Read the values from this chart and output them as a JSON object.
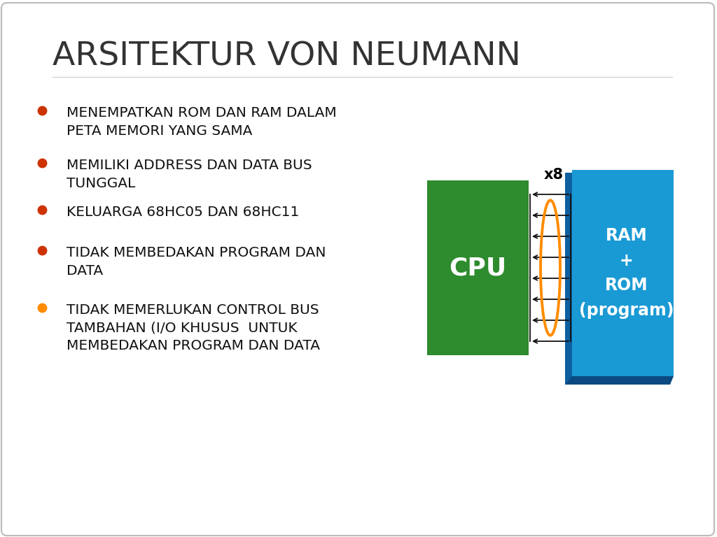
{
  "title": "ARSITEKTUR VON NEUMANN",
  "title_fontsize": 34,
  "title_color": "#333333",
  "bg_color": "#ffffff",
  "bullet_color": "#cc3300",
  "bullet_items": [
    "MENEMPATKAN ROM DAN RAM DALAM\nPETA MEMORI YANG SAMA",
    "MEMILIKI ADDRESS DAN DATA BUS\nTUNGGAL",
    "KELUARGA 68HC05 DAN 68HC11",
    "TIDAK MEMBEDAKAN PROGRAM DAN\nDATA"
  ],
  "orange_bullet_item": "TIDAK MEMERLUKAN CONTROL BUS\nTAMBAHAN (I/O KHUSUS  UNTUK\nMEMBEDAKAN PROGRAM DAN DATA",
  "text_color": "#111111",
  "text_fontsize": 14.5,
  "cpu_color": "#2e8b2e",
  "cpu_text": "CPU",
  "ram_color": "#1a9ad4",
  "ram_side_color": "#0d5fa0",
  "ram_text": "RAM\n+\nROM\n(program)",
  "bus_color": "#ff8c00",
  "x8_label": "x8",
  "arrow_color": "#111111",
  "n_arrows": 8
}
